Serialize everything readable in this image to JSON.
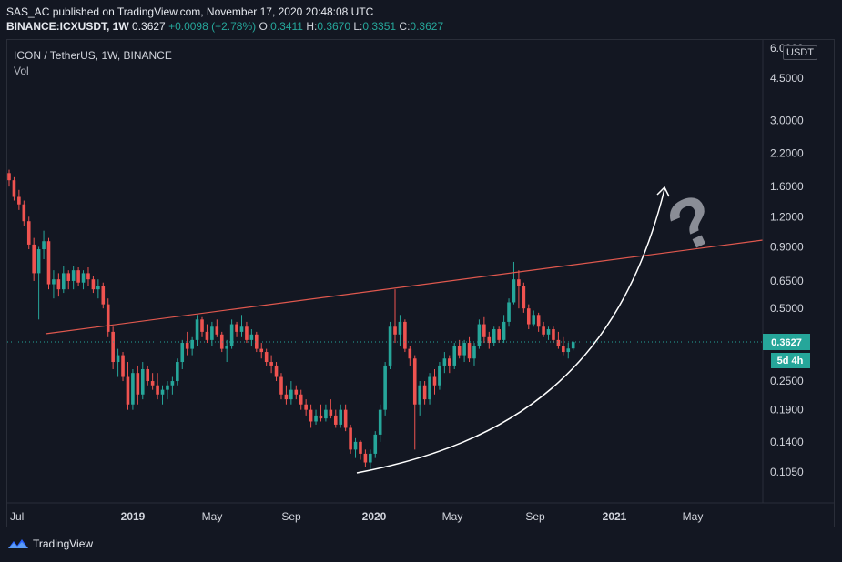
{
  "header": {
    "line1": "SAS_AC published on TradingView.com, November 17, 2020 20:48:08 UTC",
    "symbol": "BINANCE:ICXUSDT, 1W",
    "last": "0.3627",
    "change": "+0.0098 (+2.78%)",
    "o_label": "O:",
    "o_value": "0.3411",
    "h_label": "H:",
    "h_value": "0.3670",
    "l_label": "L:",
    "l_value": "0.3351",
    "c_label": "C:",
    "c_value": "0.3627"
  },
  "pane": {
    "title": "ICON / TetherUS, 1W, BINANCE",
    "volume_label": "Vol",
    "axis_unit": "USDT",
    "price_tag": "0.3627",
    "countdown_tag": "5d 4h"
  },
  "annotation": {
    "glyph": "?"
  },
  "footer": {
    "brand": "TradingView"
  },
  "colors": {
    "background": "#131722",
    "up": "#26a69a",
    "down": "#ef5350",
    "trendline": "#e0584e",
    "arrow": "#ffffff",
    "question": "#8a8d96"
  },
  "chart_data": {
    "type": "candlestick",
    "scale": "log",
    "y_ticks": [
      "6.0000",
      "4.5000",
      "3.0000",
      "2.2000",
      "1.6000",
      "1.2000",
      "0.9000",
      "0.6500",
      "0.5000",
      "0.3627",
      "0.2500",
      "0.1900",
      "0.1400",
      "0.1050"
    ],
    "x_ticks": [
      "Jul",
      "2019",
      "May",
      "Sep",
      "2020",
      "May",
      "Sep",
      "2021",
      "May"
    ],
    "candles": [
      [
        1.82,
        1.88,
        1.6,
        1.7
      ],
      [
        1.7,
        1.75,
        1.4,
        1.45
      ],
      [
        1.45,
        1.55,
        1.28,
        1.35
      ],
      [
        1.35,
        1.4,
        1.1,
        1.15
      ],
      [
        1.15,
        1.2,
        0.88,
        0.92
      ],
      [
        0.92,
        0.98,
        0.65,
        0.7
      ],
      [
        0.7,
        0.9,
        0.45,
        0.88
      ],
      [
        0.88,
        1.05,
        0.8,
        0.95
      ],
      [
        0.95,
        0.98,
        0.6,
        0.63
      ],
      [
        0.63,
        0.72,
        0.55,
        0.66
      ],
      [
        0.66,
        0.7,
        0.56,
        0.6
      ],
      [
        0.6,
        0.75,
        0.58,
        0.7
      ],
      [
        0.7,
        0.72,
        0.6,
        0.65
      ],
      [
        0.65,
        0.75,
        0.6,
        0.72
      ],
      [
        0.72,
        0.74,
        0.62,
        0.64
      ],
      [
        0.64,
        0.72,
        0.6,
        0.7
      ],
      [
        0.7,
        0.74,
        0.62,
        0.66
      ],
      [
        0.66,
        0.68,
        0.58,
        0.6
      ],
      [
        0.6,
        0.66,
        0.55,
        0.62
      ],
      [
        0.62,
        0.64,
        0.5,
        0.52
      ],
      [
        0.52,
        0.55,
        0.38,
        0.4
      ],
      [
        0.4,
        0.42,
        0.28,
        0.3
      ],
      [
        0.3,
        0.34,
        0.26,
        0.32
      ],
      [
        0.32,
        0.33,
        0.25,
        0.26
      ],
      [
        0.26,
        0.3,
        0.19,
        0.2
      ],
      [
        0.2,
        0.28,
        0.19,
        0.27
      ],
      [
        0.27,
        0.29,
        0.2,
        0.22
      ],
      [
        0.22,
        0.3,
        0.21,
        0.28
      ],
      [
        0.28,
        0.29,
        0.24,
        0.25
      ],
      [
        0.25,
        0.27,
        0.23,
        0.24
      ],
      [
        0.24,
        0.27,
        0.21,
        0.22
      ],
      [
        0.22,
        0.24,
        0.2,
        0.23
      ],
      [
        0.23,
        0.25,
        0.21,
        0.24
      ],
      [
        0.24,
        0.26,
        0.22,
        0.25
      ],
      [
        0.25,
        0.31,
        0.24,
        0.3
      ],
      [
        0.3,
        0.37,
        0.28,
        0.36
      ],
      [
        0.36,
        0.4,
        0.32,
        0.34
      ],
      [
        0.34,
        0.38,
        0.32,
        0.37
      ],
      [
        0.37,
        0.47,
        0.35,
        0.45
      ],
      [
        0.45,
        0.46,
        0.38,
        0.4
      ],
      [
        0.4,
        0.43,
        0.36,
        0.37
      ],
      [
        0.37,
        0.44,
        0.35,
        0.42
      ],
      [
        0.42,
        0.45,
        0.38,
        0.39
      ],
      [
        0.39,
        0.4,
        0.33,
        0.34
      ],
      [
        0.34,
        0.37,
        0.3,
        0.35
      ],
      [
        0.35,
        0.45,
        0.34,
        0.43
      ],
      [
        0.43,
        0.44,
        0.38,
        0.4
      ],
      [
        0.4,
        0.47,
        0.38,
        0.42
      ],
      [
        0.42,
        0.44,
        0.36,
        0.37
      ],
      [
        0.37,
        0.41,
        0.35,
        0.39
      ],
      [
        0.39,
        0.4,
        0.33,
        0.34
      ],
      [
        0.34,
        0.36,
        0.31,
        0.33
      ],
      [
        0.33,
        0.34,
        0.29,
        0.3
      ],
      [
        0.3,
        0.32,
        0.27,
        0.29
      ],
      [
        0.29,
        0.3,
        0.25,
        0.26
      ],
      [
        0.26,
        0.27,
        0.21,
        0.22
      ],
      [
        0.22,
        0.24,
        0.2,
        0.21
      ],
      [
        0.21,
        0.25,
        0.2,
        0.23
      ],
      [
        0.23,
        0.24,
        0.21,
        0.22
      ],
      [
        0.22,
        0.23,
        0.19,
        0.2
      ],
      [
        0.2,
        0.21,
        0.18,
        0.19
      ],
      [
        0.19,
        0.2,
        0.16,
        0.17
      ],
      [
        0.17,
        0.19,
        0.165,
        0.18
      ],
      [
        0.18,
        0.2,
        0.17,
        0.175
      ],
      [
        0.175,
        0.2,
        0.17,
        0.19
      ],
      [
        0.19,
        0.21,
        0.175,
        0.18
      ],
      [
        0.18,
        0.19,
        0.16,
        0.165
      ],
      [
        0.165,
        0.2,
        0.16,
        0.19
      ],
      [
        0.19,
        0.2,
        0.155,
        0.16
      ],
      [
        0.16,
        0.165,
        0.125,
        0.13
      ],
      [
        0.13,
        0.145,
        0.12,
        0.14
      ],
      [
        0.14,
        0.142,
        0.118,
        0.125
      ],
      [
        0.125,
        0.13,
        0.11,
        0.115
      ],
      [
        0.115,
        0.13,
        0.108,
        0.125
      ],
      [
        0.125,
        0.155,
        0.12,
        0.15
      ],
      [
        0.15,
        0.2,
        0.14,
        0.19
      ],
      [
        0.19,
        0.3,
        0.18,
        0.29
      ],
      [
        0.29,
        0.44,
        0.28,
        0.42
      ],
      [
        0.42,
        0.6,
        0.36,
        0.39
      ],
      [
        0.39,
        0.47,
        0.35,
        0.44
      ],
      [
        0.44,
        0.45,
        0.33,
        0.34
      ],
      [
        0.34,
        0.35,
        0.29,
        0.31
      ],
      [
        0.31,
        0.32,
        0.13,
        0.2
      ],
      [
        0.2,
        0.25,
        0.18,
        0.24
      ],
      [
        0.24,
        0.25,
        0.2,
        0.21
      ],
      [
        0.21,
        0.27,
        0.2,
        0.26
      ],
      [
        0.26,
        0.28,
        0.22,
        0.24
      ],
      [
        0.24,
        0.3,
        0.23,
        0.29
      ],
      [
        0.29,
        0.33,
        0.27,
        0.31
      ],
      [
        0.31,
        0.32,
        0.27,
        0.29
      ],
      [
        0.29,
        0.36,
        0.28,
        0.35
      ],
      [
        0.35,
        0.37,
        0.31,
        0.32
      ],
      [
        0.32,
        0.37,
        0.3,
        0.36
      ],
      [
        0.36,
        0.38,
        0.3,
        0.31
      ],
      [
        0.31,
        0.36,
        0.29,
        0.35
      ],
      [
        0.35,
        0.45,
        0.34,
        0.43
      ],
      [
        0.43,
        0.46,
        0.36,
        0.38
      ],
      [
        0.38,
        0.4,
        0.34,
        0.36
      ],
      [
        0.36,
        0.42,
        0.35,
        0.41
      ],
      [
        0.41,
        0.42,
        0.36,
        0.37
      ],
      [
        0.37,
        0.47,
        0.36,
        0.44
      ],
      [
        0.44,
        0.55,
        0.42,
        0.53
      ],
      [
        0.53,
        0.78,
        0.52,
        0.66
      ],
      [
        0.66,
        0.72,
        0.5,
        0.62
      ],
      [
        0.62,
        0.64,
        0.48,
        0.5
      ],
      [
        0.5,
        0.52,
        0.41,
        0.43
      ],
      [
        0.43,
        0.49,
        0.42,
        0.47
      ],
      [
        0.47,
        0.48,
        0.4,
        0.42
      ],
      [
        0.42,
        0.44,
        0.38,
        0.39
      ],
      [
        0.39,
        0.42,
        0.37,
        0.41
      ],
      [
        0.41,
        0.42,
        0.36,
        0.37
      ],
      [
        0.37,
        0.4,
        0.34,
        0.35
      ],
      [
        0.35,
        0.38,
        0.32,
        0.33
      ],
      [
        0.33,
        0.36,
        0.31,
        0.3411
      ],
      [
        0.3411,
        0.367,
        0.3351,
        0.3627
      ]
    ]
  }
}
